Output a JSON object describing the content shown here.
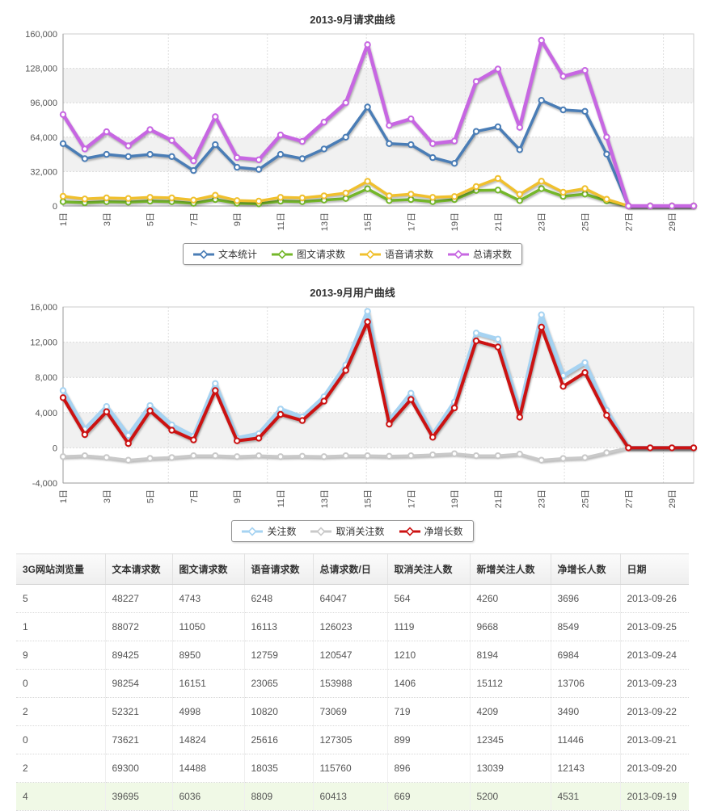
{
  "chart_data": [
    {
      "type": "line",
      "title": "2013-9月请求曲线",
      "xlabel": "",
      "ylabel": "",
      "ylim": [
        0,
        160000
      ],
      "y_ticks": [
        160000,
        128000,
        96000,
        64000,
        32000,
        0
      ],
      "y_tick_labels": [
        "160,000",
        "128,000",
        "96,000",
        "64,000",
        "32,000",
        "0"
      ],
      "x": [
        1,
        2,
        3,
        4,
        5,
        6,
        7,
        8,
        9,
        10,
        11,
        12,
        13,
        14,
        15,
        16,
        17,
        18,
        19,
        20,
        21,
        22,
        23,
        24,
        25,
        26,
        27,
        28,
        29,
        30
      ],
      "x_tick_labels": [
        "1日",
        "3日",
        "5日",
        "7日",
        "9日",
        "11日",
        "13日",
        "15日",
        "17日",
        "19日",
        "21日",
        "23日",
        "25日",
        "27日",
        "29日"
      ],
      "grid": true,
      "legend_position": "bottom",
      "series": [
        {
          "name": "文本统计",
          "color": "#4a7db6",
          "values": [
            58000,
            44000,
            48000,
            46000,
            48000,
            46000,
            33000,
            57000,
            36000,
            34000,
            48000,
            44000,
            53000,
            64000,
            92000,
            58000,
            57000,
            45000,
            39695,
            69300,
            73621,
            52321,
            98254,
            89425,
            88072,
            48227,
            0,
            0,
            0,
            0
          ]
        },
        {
          "name": "图文请求数",
          "color": "#74b72a",
          "values": [
            4000,
            3000,
            4000,
            3500,
            4500,
            4000,
            2500,
            6000,
            2500,
            2000,
            4500,
            4000,
            5500,
            7000,
            16000,
            5000,
            6000,
            4000,
            6036,
            14488,
            14824,
            4998,
            16151,
            8950,
            11050,
            4743,
            0,
            0,
            0,
            0
          ]
        },
        {
          "name": "语音请求数",
          "color": "#f0c02e",
          "values": [
            9000,
            6500,
            7500,
            7000,
            8000,
            7500,
            5500,
            10000,
            5000,
            4500,
            8000,
            7500,
            9500,
            12000,
            23000,
            9500,
            11000,
            8000,
            8809,
            18035,
            25616,
            10820,
            23065,
            12759,
            16113,
            6248,
            0,
            0,
            0,
            0
          ]
        },
        {
          "name": "总请求数",
          "color": "#c767e2",
          "values": [
            85000,
            53000,
            69000,
            56000,
            71000,
            61000,
            42000,
            83000,
            45000,
            43000,
            66000,
            60000,
            78000,
            96000,
            150000,
            75000,
            81000,
            58000,
            60413,
            115760,
            127305,
            73069,
            153988,
            120547,
            126023,
            64047,
            0,
            0,
            0,
            0
          ]
        }
      ]
    },
    {
      "type": "line",
      "title": "2013-9月用户曲线",
      "xlabel": "",
      "ylabel": "",
      "ylim": [
        -4000,
        16000
      ],
      "y_ticks": [
        16000,
        12000,
        8000,
        4000,
        0,
        -4000
      ],
      "y_tick_labels": [
        "16,000",
        "12,000",
        "8,000",
        "4,000",
        "0",
        "-4,000"
      ],
      "x": [
        1,
        2,
        3,
        4,
        5,
        6,
        7,
        8,
        9,
        10,
        11,
        12,
        13,
        14,
        15,
        16,
        17,
        18,
        19,
        20,
        21,
        22,
        23,
        24,
        25,
        26,
        27,
        28,
        29,
        30
      ],
      "x_tick_labels": [
        "1日",
        "3日",
        "5日",
        "7日",
        "9日",
        "11日",
        "13日",
        "15日",
        "17日",
        "19日",
        "21日",
        "23日",
        "25日",
        "27日",
        "29日"
      ],
      "grid": true,
      "legend_position": "bottom",
      "series": [
        {
          "name": "关注数",
          "color": "#a6d3f2",
          "values": [
            6500,
            2100,
            4700,
            1400,
            4800,
            2600,
            1300,
            7300,
            1100,
            1600,
            4400,
            3500,
            5800,
            9400,
            15500,
            3100,
            6200,
            1500,
            5200,
            13039,
            12345,
            4209,
            15112,
            8194,
            9668,
            4260,
            0,
            0,
            0,
            0
          ]
        },
        {
          "name": "取消关注数",
          "color": "#c9c9c9",
          "values": [
            -1000,
            -900,
            -1100,
            -1400,
            -1200,
            -1100,
            -900,
            -900,
            -1000,
            -900,
            -1000,
            -950,
            -1000,
            -900,
            -900,
            -950,
            -900,
            -800,
            -669,
            -896,
            -899,
            -719,
            -1406,
            -1210,
            -1119,
            -564,
            0,
            0,
            0,
            0
          ]
        },
        {
          "name": "净增长数",
          "color": "#cc1212",
          "values": [
            5700,
            1500,
            4100,
            500,
            4200,
            2000,
            900,
            6500,
            800,
            1100,
            3800,
            3100,
            5300,
            8800,
            14300,
            2700,
            5500,
            1200,
            4531,
            12143,
            11446,
            3490,
            13706,
            6984,
            8549,
            3696,
            0,
            0,
            0,
            0
          ]
        }
      ]
    }
  ],
  "table": {
    "headers": [
      "3G网站浏览量",
      "文本请求数",
      "图文请求数",
      "语音请求数",
      "总请求数/日",
      "取消关注人数",
      "新增关注人数",
      "净增长人数",
      "日期"
    ],
    "rows": [
      [
        "5",
        "48227",
        "4743",
        "6248",
        "64047",
        "564",
        "4260",
        "3696",
        "2013-09-26"
      ],
      [
        "1",
        "88072",
        "11050",
        "16113",
        "126023",
        "1119",
        "9668",
        "8549",
        "2013-09-25"
      ],
      [
        "9",
        "89425",
        "8950",
        "12759",
        "120547",
        "1210",
        "8194",
        "6984",
        "2013-09-24"
      ],
      [
        "0",
        "98254",
        "16151",
        "23065",
        "153988",
        "1406",
        "15112",
        "13706",
        "2013-09-23"
      ],
      [
        "2",
        "52321",
        "4998",
        "10820",
        "73069",
        "719",
        "4209",
        "3490",
        "2013-09-22"
      ],
      [
        "0",
        "73621",
        "14824",
        "25616",
        "127305",
        "899",
        "12345",
        "11446",
        "2013-09-21"
      ],
      [
        "2",
        "69300",
        "14488",
        "18035",
        "115760",
        "896",
        "13039",
        "12143",
        "2013-09-20"
      ],
      [
        "4",
        "39695",
        "6036",
        "8809",
        "60413",
        "669",
        "5200",
        "4531",
        "2013-09-19"
      ]
    ],
    "highlighted_row": 7,
    "highlight_color": "#f0f9e6"
  }
}
